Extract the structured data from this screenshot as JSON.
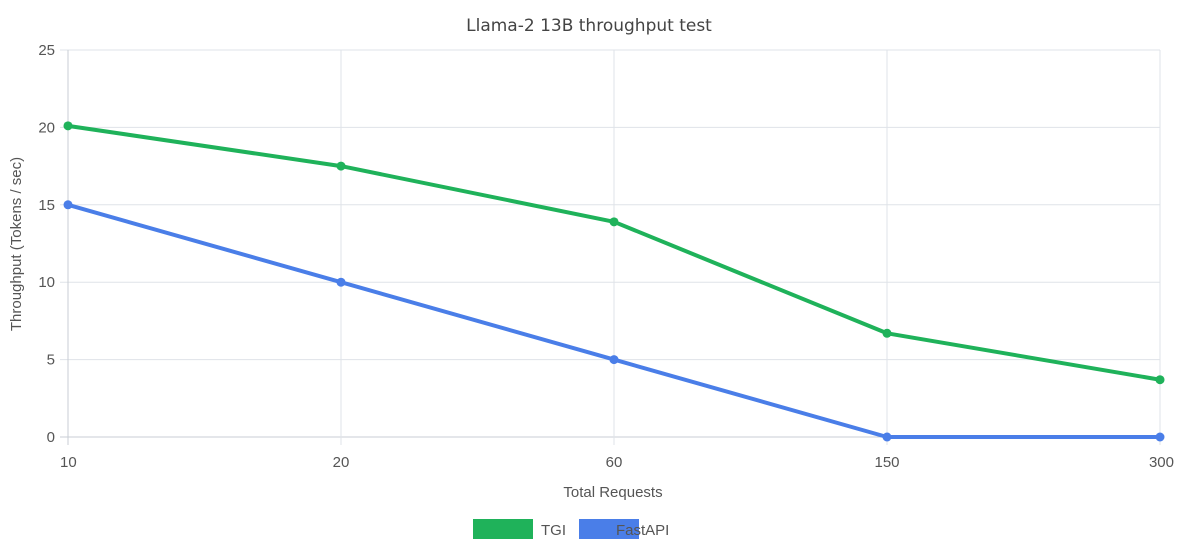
{
  "chart_data": {
    "type": "line",
    "title": "Llama-2 13B throughput test",
    "xlabel": "Total Requests",
    "ylabel": "Throughput (Tokens / sec)",
    "categories": [
      "10",
      "20",
      "60",
      "150",
      "300"
    ],
    "ylim": [
      0,
      25
    ],
    "yticks": [
      "0",
      "5",
      "10",
      "15",
      "20",
      "25"
    ],
    "grid": true,
    "legend_position": "bottom",
    "series": [
      {
        "name": "TGI",
        "color": "#1fb25a",
        "values": [
          20.1,
          17.5,
          13.9,
          6.7,
          3.7
        ]
      },
      {
        "name": "FastAPI",
        "color": "#4a7ee8",
        "values": [
          15,
          10,
          5,
          0,
          0
        ]
      }
    ]
  }
}
